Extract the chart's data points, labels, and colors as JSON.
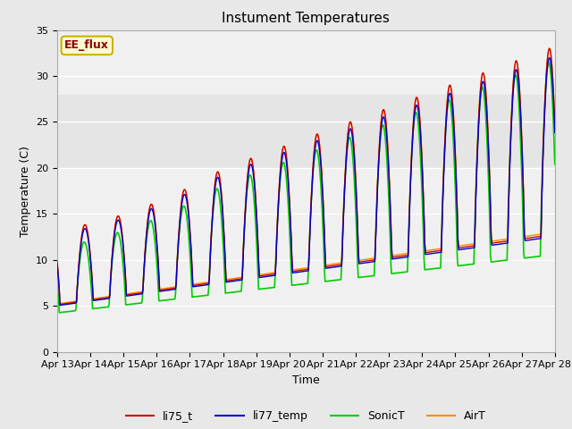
{
  "title": "Instument Temperatures",
  "xlabel": "Time",
  "ylabel": "Temperature (C)",
  "ylim": [
    0,
    35
  ],
  "tick_labels": [
    "Apr 13",
    "Apr 14",
    "Apr 15",
    "Apr 16",
    "Apr 17",
    "Apr 18",
    "Apr 19",
    "Apr 20",
    "Apr 21",
    "Apr 22",
    "Apr 23",
    "Apr 24",
    "Apr 25",
    "Apr 26",
    "Apr 27",
    "Apr 28"
  ],
  "annotation_text": "EE_flux",
  "annotation_color": "#8B0000",
  "annotation_bg": "#FFFACD",
  "annotation_edge": "#C8B400",
  "line_colors": {
    "li75_t": "#CC0000",
    "li77_temp": "#0000CC",
    "SonicT": "#00CC00",
    "AirT": "#FF8800"
  },
  "bg_color": "#E8E8E8",
  "plot_bg": "#F0F0F0",
  "title_fontsize": 11,
  "label_fontsize": 9,
  "tick_fontsize": 8
}
